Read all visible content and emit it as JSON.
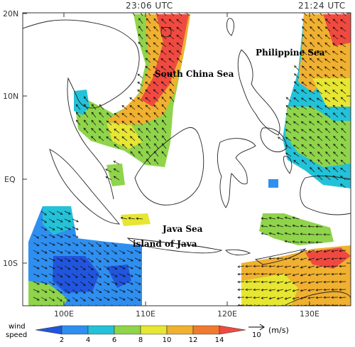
{
  "map": {
    "time_left": "23:06 UTC",
    "time_right": "21:24 UTC",
    "lat_labels": [
      "20N",
      "10N",
      "EQ",
      "10S"
    ],
    "lon_labels": [
      "100E",
      "110E",
      "120E",
      "130E"
    ],
    "places": {
      "south_china_sea": "South China Sea",
      "philippine_sea": "Philippine Sea",
      "java_sea": "Java Sea",
      "island_of_java": "island of Java"
    }
  },
  "legend": {
    "title_line1": "wind",
    "title_line2": "speed",
    "ticks": [
      "2",
      "4",
      "6",
      "8",
      "10",
      "12",
      "14"
    ],
    "colors": [
      "#2255dd",
      "#2f8ff0",
      "#23c2d8",
      "#8fd44a",
      "#e6e633",
      "#f0b030",
      "#f07a30",
      "#f04a40"
    ],
    "ref_value": "10",
    "unit": "(m/s)"
  }
}
